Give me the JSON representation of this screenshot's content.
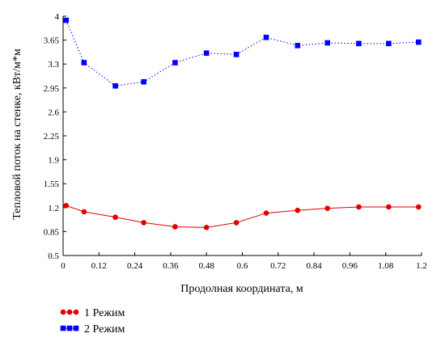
{
  "chart_data": {
    "type": "line",
    "xlabel": "Продолная координата, м",
    "ylabel": "Тепловой поток на стенке, кВт/м*м",
    "xlim": [
      0,
      1.2
    ],
    "ylim": [
      0.5,
      4
    ],
    "xticks": [
      "0",
      "0.12",
      "0.24",
      "0.36",
      "0.48",
      "0.6",
      "0.72",
      "0.84",
      "0.96",
      "1.08",
      "1.2"
    ],
    "yticks": [
      "0.5",
      "0.85",
      "1.2",
      "1.55",
      "1.9",
      "2.25",
      "2.6",
      "2.95",
      "3.3",
      "3.65",
      "4"
    ],
    "grid": false,
    "legend_position": "bottom-left",
    "series": [
      {
        "name": "1 Режим",
        "color": "#e00000",
        "marker": "circle",
        "line_style": "solid",
        "x": [
          0.01,
          0.07,
          0.175,
          0.27,
          0.375,
          0.48,
          0.58,
          0.68,
          0.785,
          0.885,
          0.99,
          1.09,
          1.19
        ],
        "y": [
          1.23,
          1.14,
          1.06,
          0.98,
          0.92,
          0.91,
          0.98,
          1.12,
          1.16,
          1.19,
          1.21,
          1.21,
          1.21
        ]
      },
      {
        "name": "2 Режим",
        "color": "#0000ff",
        "marker": "square",
        "line_style": "dotted",
        "x": [
          0.01,
          0.07,
          0.175,
          0.27,
          0.375,
          0.48,
          0.58,
          0.68,
          0.785,
          0.885,
          0.99,
          1.09,
          1.19
        ],
        "y": [
          3.94,
          3.32,
          2.98,
          3.04,
          3.32,
          3.46,
          3.44,
          3.69,
          3.57,
          3.61,
          3.6,
          3.6,
          3.62
        ]
      }
    ]
  }
}
